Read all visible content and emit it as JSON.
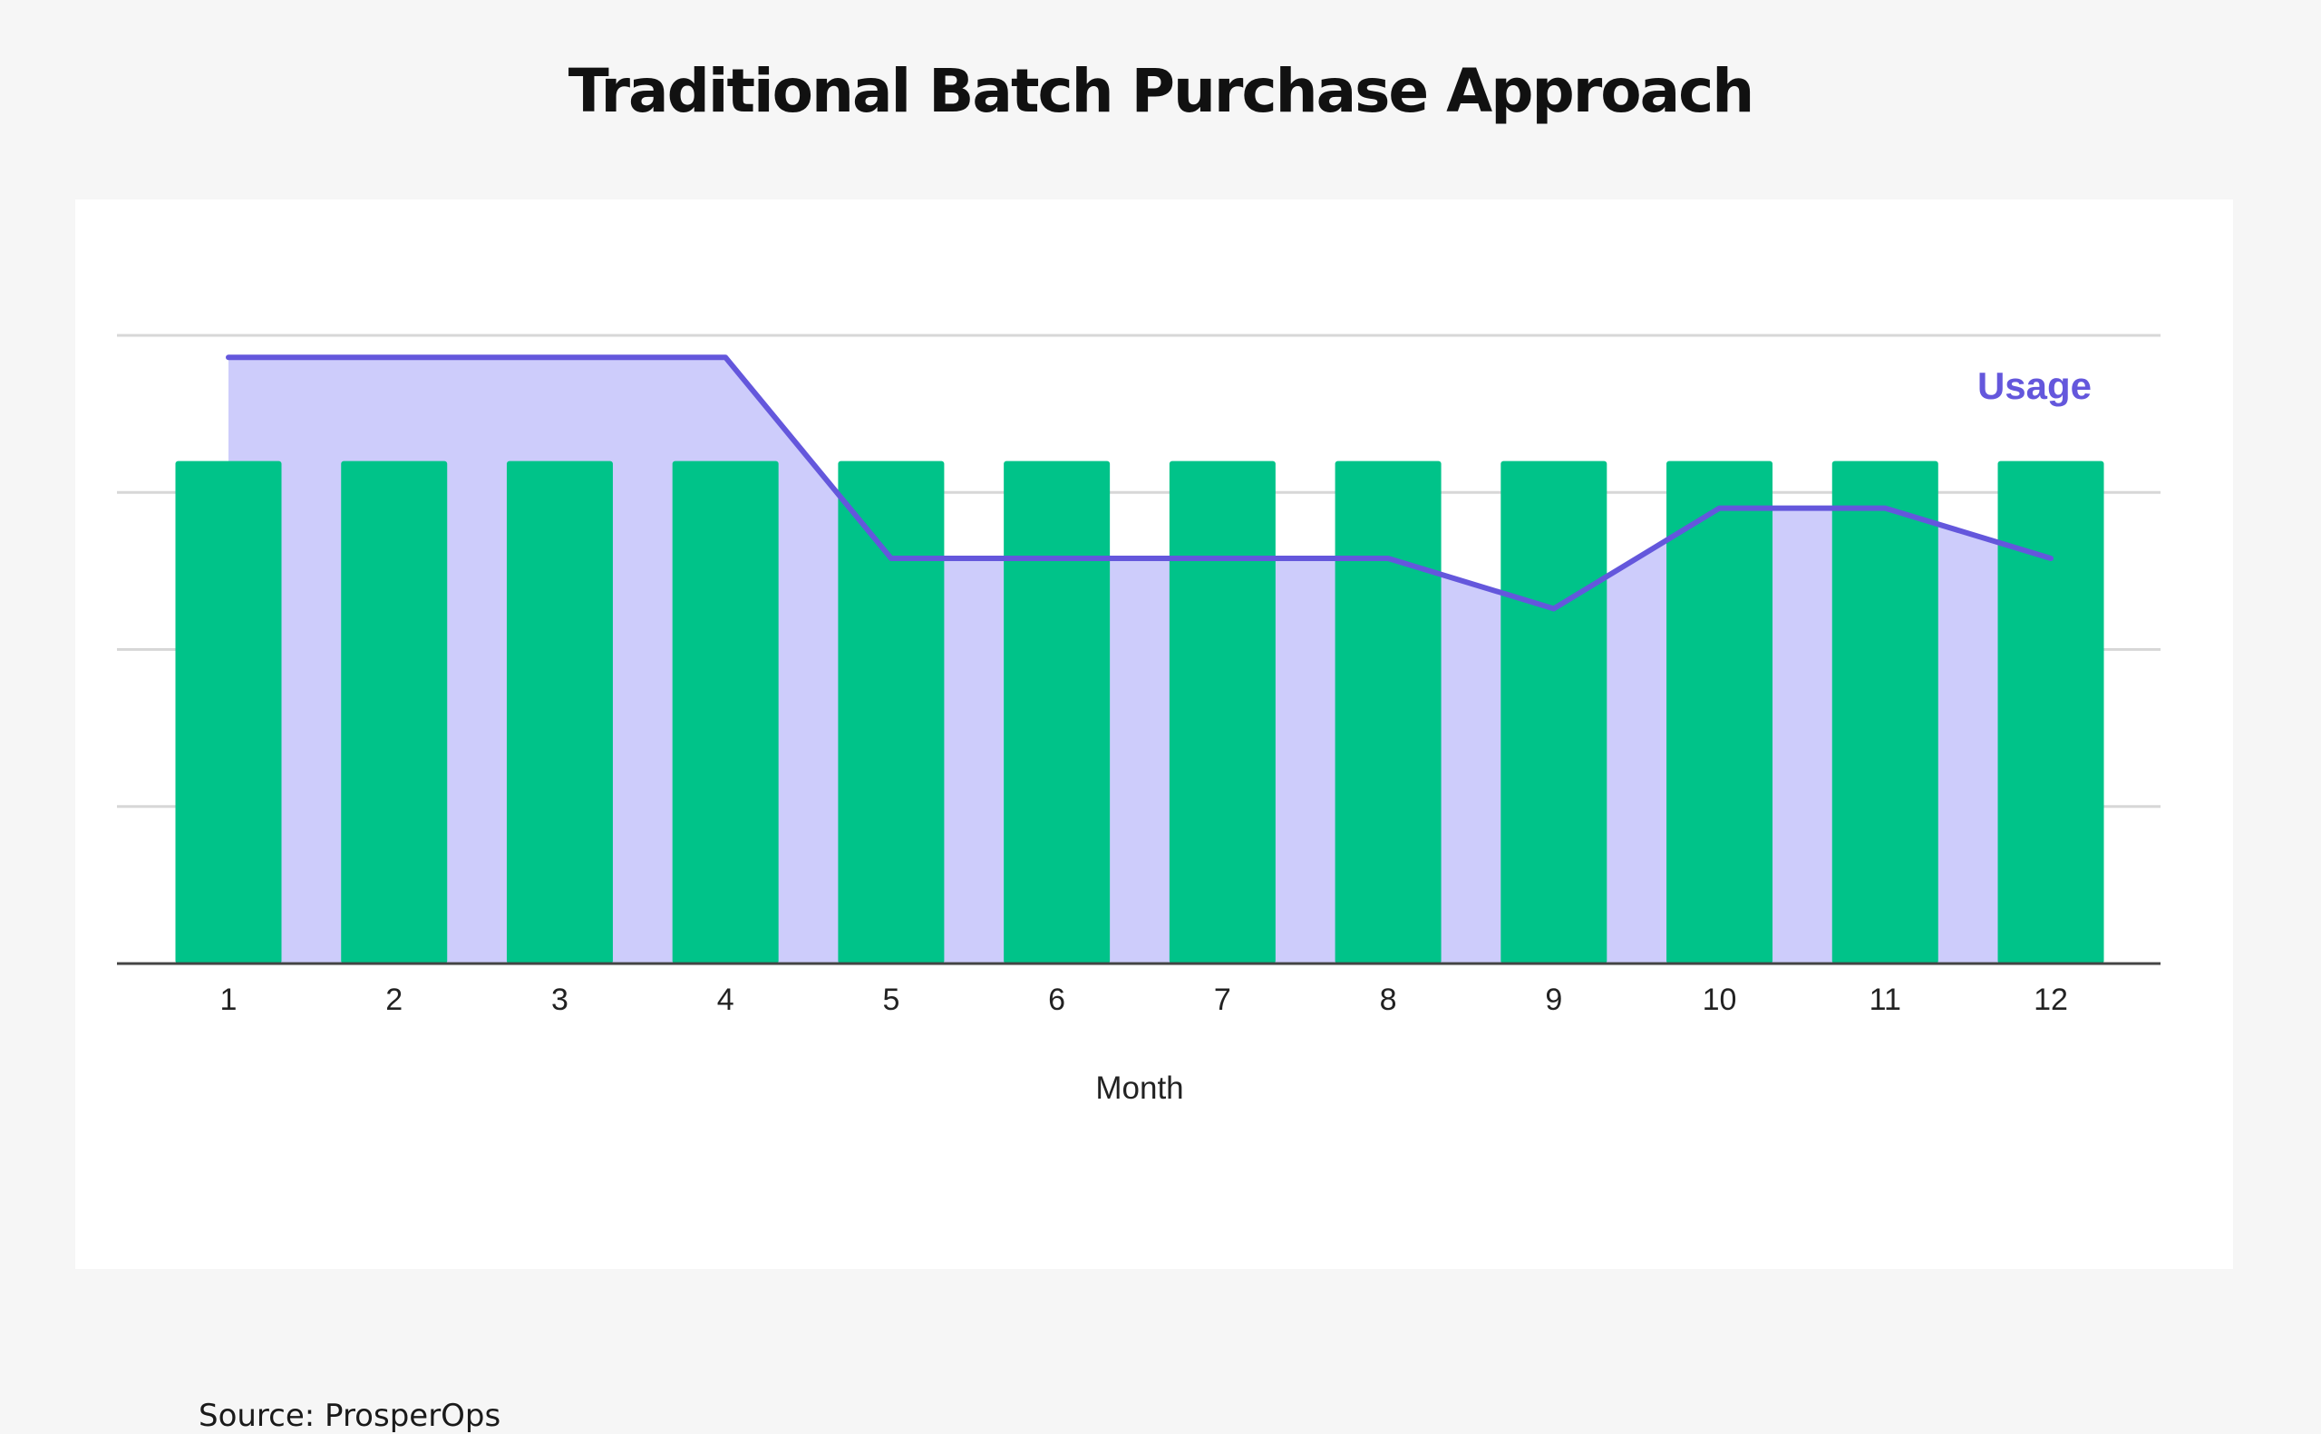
{
  "page": {
    "title": "Traditional Batch Purchase Approach",
    "source": "Source: ProsperOps"
  },
  "chart_data": {
    "type": "bar",
    "categories": [
      "1",
      "2",
      "3",
      "4",
      "5",
      "6",
      "7",
      "8",
      "9",
      "10",
      "11",
      "12"
    ],
    "series": [
      {
        "type": "bar",
        "values": [
          80,
          80,
          80,
          80,
          80,
          80,
          80,
          80,
          80,
          80,
          80,
          80
        ],
        "color": "#00c389"
      },
      {
        "name": "Usage",
        "type": "area",
        "values": [
          96.5,
          96.5,
          96.5,
          96.5,
          64.5,
          64.5,
          64.5,
          64.5,
          56.5,
          72.5,
          72.5,
          64.5
        ],
        "color": "#6457dc",
        "fill": "#cdccfb"
      }
    ],
    "xlabel": "Month",
    "ylabel": "",
    "ylim": [
      0,
      100
    ],
    "gridlines": [
      0,
      25,
      50,
      75,
      100
    ],
    "grid": true,
    "legend": "top-right"
  }
}
